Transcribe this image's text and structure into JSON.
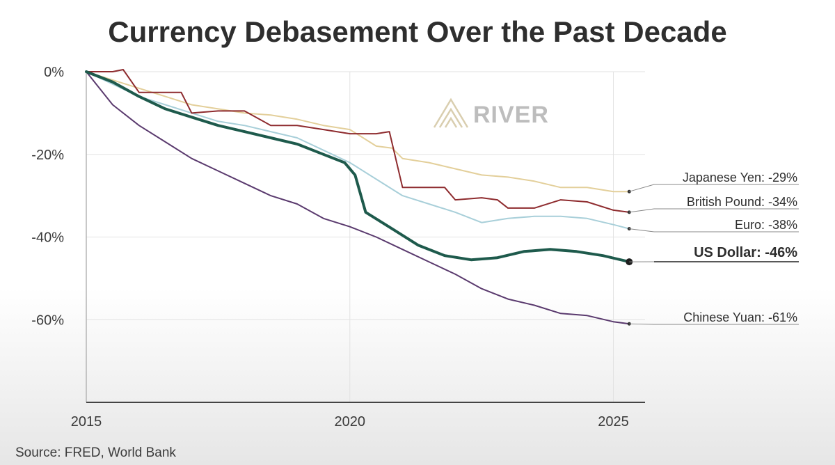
{
  "chart_data": {
    "type": "line",
    "title": "Currency Debasement Over the Past Decade",
    "source": "Source: FRED, World Bank",
    "watermark": "RIVER",
    "xlim": [
      2015,
      2025.6
    ],
    "ylim": [
      -80,
      0
    ],
    "x_ticks": [
      2015,
      2020,
      2025
    ],
    "x_tick_labels": [
      "2015",
      "2020",
      "2025"
    ],
    "y_ticks": [
      0,
      -20,
      -40,
      -60
    ],
    "y_tick_labels": [
      "0%",
      "-20%",
      "-40%",
      "-60%"
    ],
    "grid": true,
    "colors": {
      "japanese_yen": "#e3cf9a",
      "british_pound": "#8e2b2e",
      "euro": "#a8cfd9",
      "us_dollar": "#1e5a4c",
      "chinese_yuan": "#5a3a6e"
    },
    "series": [
      {
        "name": "Japanese Yen",
        "label": "Japanese Yen: -29%",
        "key": "japanese_yen",
        "x": [
          2015,
          2015.5,
          2016,
          2016.5,
          2017,
          2017.5,
          2018,
          2018.5,
          2019,
          2019.5,
          2020,
          2020.5,
          2020.8,
          2021,
          2021.5,
          2022,
          2022.5,
          2023,
          2023.5,
          2024,
          2024.5,
          2025,
          2025.3
        ],
        "values": [
          0,
          -2,
          -4,
          -6,
          -8,
          -9,
          -10,
          -10.5,
          -11.5,
          -13,
          -14,
          -18,
          -18.5,
          -21,
          -22,
          -23.5,
          -25,
          -25.5,
          -26.5,
          -28,
          -28,
          -29,
          -29
        ]
      },
      {
        "name": "British Pound",
        "label": "British Pound: -34%",
        "key": "british_pound",
        "x": [
          2015,
          2015.5,
          2015.7,
          2016,
          2016.5,
          2016.8,
          2017,
          2017.5,
          2018,
          2018.5,
          2019,
          2019.5,
          2020,
          2020.5,
          2020.75,
          2021,
          2021.5,
          2021.8,
          2022,
          2022.5,
          2022.8,
          2023,
          2023.5,
          2024,
          2024.5,
          2025,
          2025.3
        ],
        "values": [
          0,
          0,
          0.5,
          -5,
          -5,
          -5,
          -10,
          -9.5,
          -9.5,
          -13,
          -13,
          -14,
          -15,
          -15,
          -14.5,
          -28,
          -28,
          -28,
          -31,
          -30.5,
          -31,
          -33,
          -33,
          -31,
          -31.5,
          -33.5,
          -34
        ]
      },
      {
        "name": "Euro",
        "label": "Euro: -38%",
        "key": "euro",
        "x": [
          2015,
          2016,
          2016.5,
          2017,
          2017.5,
          2018,
          2018.5,
          2019,
          2019.5,
          2020,
          2020.5,
          2021,
          2021.5,
          2022,
          2022.5,
          2023,
          2023.5,
          2024,
          2024.5,
          2025,
          2025.3
        ],
        "values": [
          0,
          -6,
          -8,
          -10,
          -12,
          -13,
          -14.5,
          -16,
          -19,
          -22,
          -26,
          -30,
          -32,
          -34,
          -36.5,
          -35.5,
          -35,
          -35,
          -35.5,
          -37,
          -38
        ]
      },
      {
        "name": "US Dollar",
        "label": "US Dollar: -46%",
        "key": "us_dollar",
        "x": [
          2015,
          2015.5,
          2016,
          2016.5,
          2017,
          2017.5,
          2018,
          2018.5,
          2019,
          2019.5,
          2019.9,
          2020.1,
          2020.3,
          2020.8,
          2021.3,
          2021.8,
          2022.3,
          2022.8,
          2023.3,
          2023.8,
          2024.3,
          2024.8,
          2025.3
        ],
        "values": [
          0,
          -2.5,
          -6,
          -9,
          -11,
          -13,
          -14.5,
          -16,
          -17.5,
          -20,
          -22,
          -25,
          -34,
          -38,
          -42,
          -44.5,
          -45.5,
          -45,
          -43.5,
          -43,
          -43.5,
          -44.5,
          -46
        ]
      },
      {
        "name": "Chinese Yuan",
        "label": "Chinese Yuan: -61%",
        "key": "chinese_yuan",
        "x": [
          2015,
          2015.5,
          2016,
          2016.5,
          2017,
          2017.5,
          2018,
          2018.5,
          2019,
          2019.5,
          2020,
          2020.5,
          2021,
          2021.5,
          2022,
          2022.5,
          2023,
          2023.5,
          2024,
          2024.5,
          2025,
          2025.3
        ],
        "values": [
          0,
          -8,
          -13,
          -17,
          -21,
          -24,
          -27,
          -30,
          -32,
          -35.5,
          -37.5,
          -40,
          -43,
          -46,
          -49,
          -52.5,
          -55,
          -56.5,
          -58.5,
          -59,
          -60.5,
          -61
        ]
      }
    ]
  }
}
